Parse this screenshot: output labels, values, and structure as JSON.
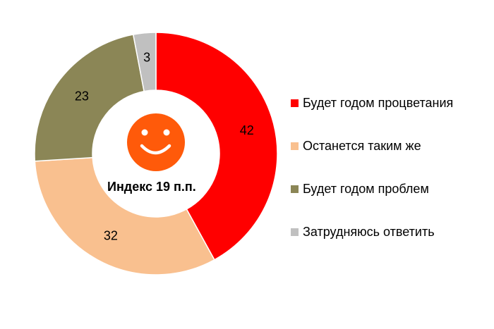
{
  "chart_data": {
    "type": "pie",
    "variant": "donut",
    "categories": [
      "Будет годом процветания",
      "Останется таким же",
      "Будет годом проблем",
      "Затрудняюсь ответить"
    ],
    "values": [
      42,
      32,
      23,
      3
    ],
    "colors": [
      "#ff0000",
      "#f9c08f",
      "#8b8656",
      "#c0c0c0"
    ],
    "center_text": "Индекс 19 п.п.",
    "center_icon": "smiley-face-icon",
    "center_icon_color": "#ff5a0a",
    "legend_position": "right"
  }
}
